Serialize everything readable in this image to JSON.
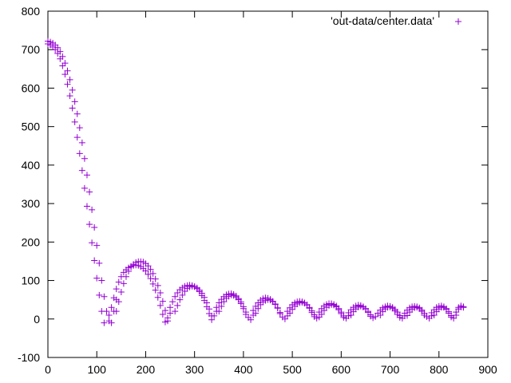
{
  "chart_data": {
    "type": "scatter",
    "title": "",
    "xlabel": "",
    "ylabel": "",
    "xlim": [
      0,
      900
    ],
    "ylim": [
      -100,
      800
    ],
    "x_ticks": [
      0,
      100,
      200,
      300,
      400,
      500,
      600,
      700,
      800,
      900
    ],
    "y_ticks": [
      -100,
      0,
      100,
      200,
      300,
      400,
      500,
      600,
      700,
      800
    ],
    "grid": false,
    "legend_position": "top-right",
    "marker": "plus",
    "color": "#9400d3",
    "series": [
      {
        "name": "'out-data/center.data'",
        "points": [
          [
            0,
            715
          ],
          [
            5,
            712
          ],
          [
            10,
            707
          ],
          [
            15,
            700
          ],
          [
            20,
            690
          ],
          [
            25,
            676
          ],
          [
            30,
            658
          ],
          [
            35,
            636
          ],
          [
            40,
            610
          ],
          [
            45,
            580
          ],
          [
            50,
            548
          ],
          [
            55,
            512
          ],
          [
            60,
            472
          ],
          [
            65,
            430
          ],
          [
            70,
            386
          ],
          [
            75,
            340
          ],
          [
            80,
            293
          ],
          [
            85,
            246
          ],
          [
            90,
            198
          ],
          [
            95,
            152
          ],
          [
            100,
            106
          ],
          [
            105,
            62
          ],
          [
            110,
            20
          ],
          [
            115,
            -10
          ],
          [
            0,
            722
          ],
          [
            5,
            720
          ],
          [
            10,
            717
          ],
          [
            15,
            712
          ],
          [
            20,
            705
          ],
          [
            25,
            695
          ],
          [
            30,
            682
          ],
          [
            35,
            665
          ],
          [
            40,
            645
          ],
          [
            45,
            622
          ],
          [
            50,
            595
          ],
          [
            55,
            565
          ],
          [
            60,
            533
          ],
          [
            65,
            497
          ],
          [
            70,
            458
          ],
          [
            75,
            417
          ],
          [
            80,
            374
          ],
          [
            85,
            330
          ],
          [
            90,
            284
          ],
          [
            95,
            238
          ],
          [
            100,
            191
          ],
          [
            105,
            145
          ],
          [
            110,
            100
          ],
          [
            115,
            58
          ],
          [
            120,
            20
          ],
          [
            125,
            -5
          ],
          [
            130,
            -10
          ],
          [
            135,
            20
          ],
          [
            140,
            50
          ],
          [
            125,
            10
          ],
          [
            130,
            30
          ],
          [
            135,
            55
          ],
          [
            140,
            78
          ],
          [
            145,
            96
          ],
          [
            150,
            110
          ],
          [
            155,
            121
          ],
          [
            160,
            128
          ],
          [
            165,
            133
          ],
          [
            170,
            137
          ],
          [
            175,
            139
          ],
          [
            180,
            140
          ],
          [
            185,
            139
          ],
          [
            190,
            136
          ],
          [
            195,
            131
          ],
          [
            200,
            125
          ],
          [
            205,
            116
          ],
          [
            210,
            105
          ],
          [
            215,
            91
          ],
          [
            220,
            75
          ],
          [
            225,
            56
          ],
          [
            230,
            35
          ],
          [
            235,
            12
          ],
          [
            240,
            -8
          ],
          [
            245,
            -5
          ],
          [
            250,
            15
          ],
          [
            140,
            20
          ],
          [
            145,
            45
          ],
          [
            150,
            70
          ],
          [
            155,
            92
          ],
          [
            160,
            110
          ],
          [
            165,
            124
          ],
          [
            170,
            135
          ],
          [
            175,
            142
          ],
          [
            180,
            147
          ],
          [
            185,
            149
          ],
          [
            190,
            149
          ],
          [
            195,
            148
          ],
          [
            200,
            144
          ],
          [
            205,
            138
          ],
          [
            210,
            129
          ],
          [
            215,
            118
          ],
          [
            220,
            104
          ],
          [
            225,
            87
          ],
          [
            230,
            68
          ],
          [
            235,
            46
          ],
          [
            240,
            22
          ],
          [
            245,
            3
          ],
          [
            250,
            30
          ],
          [
            255,
            45
          ],
          [
            260,
            58
          ],
          [
            265,
            68
          ],
          [
            270,
            76
          ],
          [
            275,
            81
          ],
          [
            280,
            85
          ],
          [
            285,
            87
          ],
          [
            290,
            88
          ],
          [
            295,
            87
          ],
          [
            300,
            84
          ],
          [
            305,
            79
          ],
          [
            310,
            71
          ],
          [
            315,
            61
          ],
          [
            320,
            48
          ],
          [
            325,
            32
          ],
          [
            330,
            14
          ],
          [
            335,
            -2
          ],
          [
            340,
            8
          ],
          [
            345,
            20
          ],
          [
            260,
            20
          ],
          [
            265,
            35
          ],
          [
            270,
            50
          ],
          [
            275,
            62
          ],
          [
            280,
            72
          ],
          [
            285,
            79
          ],
          [
            290,
            83
          ],
          [
            295,
            85
          ],
          [
            300,
            84
          ],
          [
            305,
            81
          ],
          [
            310,
            75
          ],
          [
            315,
            67
          ],
          [
            320,
            56
          ],
          [
            325,
            42
          ],
          [
            330,
            26
          ],
          [
            335,
            8
          ],
          [
            345,
            30
          ],
          [
            350,
            42
          ],
          [
            355,
            51
          ],
          [
            360,
            58
          ],
          [
            365,
            63
          ],
          [
            370,
            65
          ],
          [
            375,
            66
          ],
          [
            380,
            64
          ],
          [
            385,
            60
          ],
          [
            390,
            53
          ],
          [
            395,
            44
          ],
          [
            400,
            32
          ],
          [
            405,
            18
          ],
          [
            410,
            4
          ],
          [
            415,
            -2
          ],
          [
            420,
            10
          ],
          [
            350,
            20
          ],
          [
            355,
            33
          ],
          [
            360,
            45
          ],
          [
            365,
            54
          ],
          [
            370,
            59
          ],
          [
            375,
            62
          ],
          [
            380,
            61
          ],
          [
            385,
            57
          ],
          [
            390,
            50
          ],
          [
            395,
            40
          ],
          [
            400,
            27
          ],
          [
            405,
            12
          ],
          [
            420,
            22
          ],
          [
            425,
            33
          ],
          [
            430,
            42
          ],
          [
            435,
            49
          ],
          [
            440,
            53
          ],
          [
            445,
            55
          ],
          [
            450,
            54
          ],
          [
            455,
            51
          ],
          [
            460,
            46
          ],
          [
            465,
            39
          ],
          [
            470,
            29
          ],
          [
            475,
            17
          ],
          [
            480,
            5
          ],
          [
            485,
            0
          ],
          [
            490,
            8
          ],
          [
            425,
            15
          ],
          [
            430,
            27
          ],
          [
            435,
            37
          ],
          [
            440,
            44
          ],
          [
            445,
            48
          ],
          [
            450,
            50
          ],
          [
            455,
            49
          ],
          [
            460,
            45
          ],
          [
            465,
            38
          ],
          [
            470,
            28
          ],
          [
            475,
            14
          ],
          [
            490,
            20
          ],
          [
            495,
            29
          ],
          [
            500,
            37
          ],
          [
            505,
            42
          ],
          [
            510,
            45
          ],
          [
            515,
            46
          ],
          [
            520,
            45
          ],
          [
            525,
            42
          ],
          [
            530,
            37
          ],
          [
            535,
            30
          ],
          [
            540,
            21
          ],
          [
            545,
            11
          ],
          [
            550,
            2
          ],
          [
            555,
            5
          ],
          [
            495,
            15
          ],
          [
            500,
            25
          ],
          [
            505,
            33
          ],
          [
            510,
            39
          ],
          [
            515,
            42
          ],
          [
            520,
            43
          ],
          [
            525,
            41
          ],
          [
            530,
            36
          ],
          [
            535,
            28
          ],
          [
            540,
            17
          ],
          [
            545,
            6
          ],
          [
            555,
            18
          ],
          [
            560,
            27
          ],
          [
            565,
            34
          ],
          [
            570,
            38
          ],
          [
            575,
            40
          ],
          [
            580,
            40
          ],
          [
            585,
            38
          ],
          [
            590,
            34
          ],
          [
            595,
            27
          ],
          [
            600,
            18
          ],
          [
            605,
            8
          ],
          [
            610,
            2
          ],
          [
            615,
            8
          ],
          [
            560,
            12
          ],
          [
            565,
            22
          ],
          [
            570,
            30
          ],
          [
            575,
            35
          ],
          [
            580,
            37
          ],
          [
            585,
            36
          ],
          [
            590,
            32
          ],
          [
            595,
            24
          ],
          [
            600,
            14
          ],
          [
            605,
            4
          ],
          [
            615,
            16
          ],
          [
            620,
            24
          ],
          [
            625,
            30
          ],
          [
            630,
            34
          ],
          [
            635,
            36
          ],
          [
            640,
            35
          ],
          [
            645,
            32
          ],
          [
            650,
            27
          ],
          [
            655,
            20
          ],
          [
            660,
            11
          ],
          [
            665,
            3
          ],
          [
            670,
            6
          ],
          [
            620,
            10
          ],
          [
            625,
            19
          ],
          [
            630,
            26
          ],
          [
            635,
            31
          ],
          [
            640,
            33
          ],
          [
            645,
            31
          ],
          [
            650,
            26
          ],
          [
            655,
            17
          ],
          [
            660,
            7
          ],
          [
            675,
            15
          ],
          [
            680,
            23
          ],
          [
            685,
            29
          ],
          [
            690,
            32
          ],
          [
            695,
            34
          ],
          [
            700,
            33
          ],
          [
            705,
            30
          ],
          [
            710,
            25
          ],
          [
            715,
            18
          ],
          [
            720,
            9
          ],
          [
            725,
            2
          ],
          [
            730,
            8
          ],
          [
            680,
            10
          ],
          [
            685,
            19
          ],
          [
            690,
            26
          ],
          [
            695,
            30
          ],
          [
            700,
            31
          ],
          [
            705,
            28
          ],
          [
            710,
            21
          ],
          [
            715,
            12
          ],
          [
            720,
            4
          ],
          [
            730,
            15
          ],
          [
            735,
            23
          ],
          [
            740,
            29
          ],
          [
            745,
            32
          ],
          [
            750,
            33
          ],
          [
            755,
            32
          ],
          [
            760,
            29
          ],
          [
            765,
            23
          ],
          [
            770,
            15
          ],
          [
            775,
            6
          ],
          [
            780,
            2
          ],
          [
            785,
            8
          ],
          [
            735,
            9
          ],
          [
            740,
            18
          ],
          [
            745,
            25
          ],
          [
            750,
            29
          ],
          [
            755,
            30
          ],
          [
            760,
            27
          ],
          [
            765,
            20
          ],
          [
            770,
            10
          ],
          [
            785,
            16
          ],
          [
            790,
            24
          ],
          [
            795,
            30
          ],
          [
            800,
            33
          ],
          [
            805,
            34
          ],
          [
            810,
            32
          ],
          [
            815,
            27
          ],
          [
            820,
            19
          ],
          [
            825,
            9
          ],
          [
            830,
            2
          ],
          [
            835,
            10
          ],
          [
            790,
            10
          ],
          [
            795,
            19
          ],
          [
            800,
            26
          ],
          [
            805,
            30
          ],
          [
            810,
            30
          ],
          [
            815,
            25
          ],
          [
            820,
            15
          ],
          [
            825,
            5
          ],
          [
            835,
            18
          ],
          [
            840,
            26
          ],
          [
            845,
            31
          ],
          [
            850,
            32
          ],
          [
            840,
            30
          ],
          [
            845,
            34
          ],
          [
            850,
            30
          ]
        ]
      }
    ]
  }
}
